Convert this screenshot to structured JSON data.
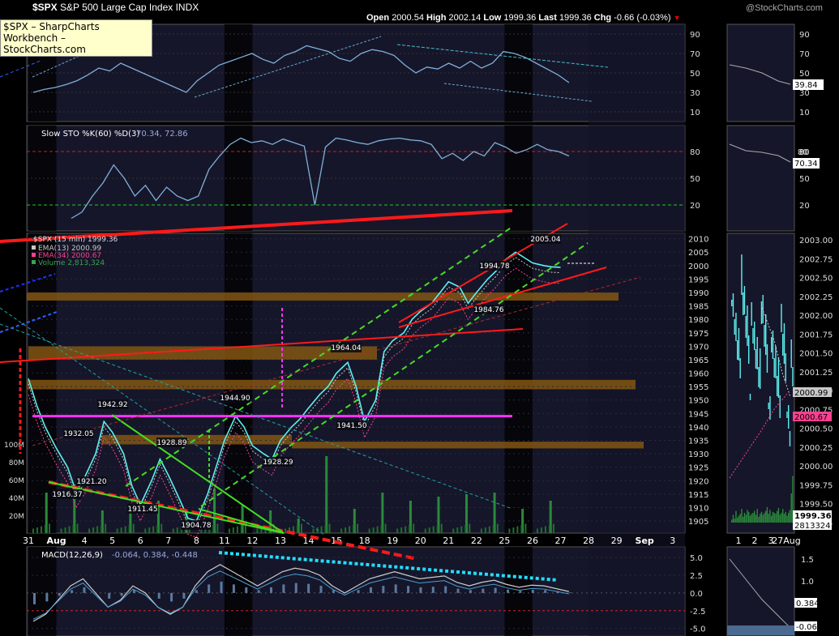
{
  "tooltip": {
    "line1": "$SPX – SharpCharts Workbench –",
    "line2": "StockCharts.com"
  },
  "header": {
    "symbol": "$SPX",
    "name": "S&P 500 Large Cap Index",
    "exchange": "INDX"
  },
  "quote": {
    "open_label": "Open",
    "open": "2000.54",
    "high_label": "High",
    "high": "2002.14",
    "low_label": "Low",
    "low": "1999.36",
    "last_label": "Last",
    "last": "1999.36",
    "chg_label": "Chg",
    "chg": "-0.66 (-0.03%)"
  },
  "watermark": "@StockCharts.com",
  "colors": {
    "price": "#5ef0f0",
    "ema13": "#c8c8c8",
    "ema34": "#ff4090",
    "rsi": "#7fb0d8",
    "red": "#ff1a1a",
    "green": "#44dd22",
    "magenta": "#ff33ff",
    "orange_band": "#8a5a10",
    "panel_bg": "#16162a",
    "weekend_bg": "#000000"
  },
  "chart_data": [
    {
      "type": "line",
      "panel": "rsi",
      "title": "",
      "yticks": [
        10,
        30,
        50,
        70,
        90
      ],
      "ylim": [
        0,
        100
      ],
      "overbought": 70,
      "oversold": 30,
      "side_value": "39.84",
      "series": [
        {
          "values": [
            30,
            33,
            35,
            38,
            42,
            48,
            55,
            52,
            60,
            55,
            50,
            45,
            40,
            35,
            30,
            42,
            50,
            58,
            62,
            66,
            70,
            64,
            60,
            68,
            72,
            78,
            75,
            72,
            65,
            62,
            70,
            74,
            72,
            68,
            58,
            50,
            56,
            54,
            60,
            55,
            62,
            55,
            60,
            72,
            70,
            66,
            60,
            54,
            48,
            40
          ]
        }
      ]
    },
    {
      "type": "line",
      "panel": "sto",
      "title": "Slow STO %K(60) %D(3)",
      "values_text": "70.34, 72.86",
      "yticks": [
        20,
        50,
        80
      ],
      "ylim": [
        0,
        100
      ],
      "side_values": [
        "80",
        "70.34"
      ],
      "series": [
        {
          "values": [
            5,
            12,
            30,
            45,
            65,
            50,
            30,
            42,
            25,
            40,
            30,
            25,
            30,
            60,
            75,
            88,
            95,
            90,
            92,
            88,
            94,
            90,
            86,
            20,
            85,
            95,
            93,
            90,
            88,
            92,
            94,
            95,
            93,
            92,
            88,
            72,
            78,
            70,
            80,
            75,
            90,
            85,
            78,
            82,
            88,
            82,
            80,
            75
          ]
        }
      ]
    },
    {
      "type": "line",
      "panel": "price",
      "title": "$SPX (15 min)",
      "last": "1999.36",
      "legend": [
        {
          "label": "EMA(13)",
          "value": "2000.99"
        },
        {
          "label": "EMA(34)",
          "value": "2000.67"
        },
        {
          "label": "Volume",
          "value": "2,813,324"
        }
      ],
      "categories": [
        "31",
        "Aug",
        "4",
        "5",
        "6",
        "7",
        "8",
        "11",
        "12",
        "13",
        "14",
        "15",
        "18",
        "19",
        "20",
        "21",
        "22",
        "25",
        "26",
        "27",
        "28",
        "29",
        "Sep",
        "3"
      ],
      "yticks": [
        1905,
        1910,
        1915,
        1920,
        1925,
        1930,
        1935,
        1940,
        1945,
        1950,
        1955,
        1960,
        1965,
        1970,
        1975,
        1980,
        1985,
        1990,
        1995,
        2000,
        2005,
        2010
      ],
      "ylim": [
        1902,
        2012
      ],
      "volume_ticks": [
        "20M",
        "40M",
        "60M",
        "80M",
        "100M"
      ],
      "annotations": [
        "1942.92",
        "1932.05",
        "1921.20",
        "1916.37",
        "1911.45",
        "1928.89",
        "1904.78",
        "1944.90",
        "1928.29",
        "1964.04",
        "1941.50",
        "1994.78",
        "1984.76",
        "2005.04"
      ],
      "series": [
        {
          "name": "$SPX (15 min)",
          "x": [
            0,
            0.3,
            0.6,
            1,
            1.4,
            1.7,
            2,
            2.4,
            2.7,
            3,
            3.4,
            3.7,
            4,
            4.4,
            4.7,
            5,
            5.4,
            5.7,
            6,
            6.4,
            6.7,
            7,
            7.4,
            7.7,
            8,
            8.4,
            8.7,
            9,
            9.4,
            9.7,
            10,
            10.4,
            10.7,
            11,
            11.4,
            11.7,
            12,
            12.4,
            12.7,
            13,
            13.4,
            13.7,
            14,
            14.4,
            14.7,
            15,
            15.4,
            15.7,
            16,
            16.4,
            16.7,
            17,
            17.4,
            17.7,
            18,
            18.4,
            18.7,
            19
          ],
          "values": [
            1958,
            1948,
            1940,
            1932,
            1925,
            1916,
            1921,
            1930,
            1942,
            1938,
            1930,
            1918,
            1911,
            1920,
            1928,
            1922,
            1913,
            1906,
            1905,
            1915,
            1925,
            1935,
            1944,
            1940,
            1933,
            1930,
            1928,
            1935,
            1940,
            1943,
            1947,
            1952,
            1955,
            1960,
            1964,
            1955,
            1942,
            1950,
            1968,
            1972,
            1975,
            1980,
            1983,
            1986,
            1990,
            1994,
            1992,
            1986,
            1990,
            1995,
            1998,
            2002,
            2005,
            2003,
            2001,
            2000,
            1999.5,
            1999.36
          ]
        }
      ]
    },
    {
      "type": "line",
      "panel": "macd",
      "title": "MACD(12,26,9)",
      "values_text": "-0.064, 0.384, -0.448",
      "yticks": [
        -5.0,
        -2.5,
        0.0,
        2.5,
        5.0
      ],
      "ylim": [
        -5.5,
        6.5
      ],
      "side_ticks": [
        "1.5",
        "1.0"
      ],
      "side_values": [
        "0.384",
        "-0.064"
      ],
      "series": [
        {
          "values": [
            -4,
            -3,
            -1,
            1,
            2,
            0,
            -2,
            -1,
            1,
            0,
            -2,
            -3,
            -2,
            1,
            3,
            4,
            3,
            2,
            1,
            2,
            3,
            3.5,
            3.2,
            2.5,
            1,
            0,
            1,
            2,
            2.5,
            3,
            2.5,
            2,
            2.2,
            2.4,
            1.5,
            1,
            1.5,
            1.8,
            1.2,
            0.8,
            1.1,
            1,
            0.6,
            0.2
          ]
        }
      ]
    }
  ],
  "side_panel": {
    "xticks": [
      "1",
      "2",
      "3",
      "27Aug"
    ],
    "yticks": [
      "2003.00",
      "2002.75",
      "2002.50",
      "2002.25",
      "2002.00",
      "2001.75",
      "2001.50",
      "2001.25",
      "2001.00",
      "2000.75",
      "2000.50",
      "2000.25",
      "2000.00",
      "1999.75",
      "1999.50",
      "1999.25"
    ],
    "price_labels": [
      "2000.99",
      "2000.67",
      "1999.36",
      "2813324"
    ],
    "volume_values": [
      3,
      8,
      4,
      12,
      5,
      7,
      9,
      14,
      6,
      10,
      8,
      13,
      11,
      7,
      9,
      10,
      12,
      8,
      14,
      6,
      9,
      11,
      8,
      10,
      12,
      16,
      9,
      13,
      7,
      11,
      10,
      9,
      12,
      15,
      8,
      10,
      14,
      9,
      11,
      7,
      10,
      13,
      30,
      48
    ]
  }
}
